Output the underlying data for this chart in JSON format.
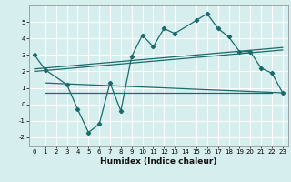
{
  "title": "",
  "xlabel": "Humidex (Indice chaleur)",
  "ylabel": "",
  "bg_color": "#d6eeee",
  "grid_color": "#c8e0e0",
  "line_color": "#1a6b6b",
  "ylim": [
    -2.5,
    6.0
  ],
  "xlim": [
    -0.5,
    23.5
  ],
  "main_line_x": [
    0,
    1,
    3,
    4,
    5,
    6,
    7,
    8,
    9,
    10,
    11,
    12,
    13,
    15,
    16,
    17,
    18,
    19,
    20,
    21,
    22,
    23
  ],
  "main_line_y": [
    3.0,
    2.1,
    1.2,
    -0.3,
    -1.7,
    -1.2,
    1.3,
    -0.4,
    2.9,
    4.2,
    3.5,
    4.6,
    4.3,
    5.1,
    5.5,
    4.6,
    4.1,
    3.2,
    3.2,
    2.2,
    1.9,
    0.7
  ],
  "reg_line1": {
    "x": [
      0,
      23
    ],
    "y": [
      2.15,
      3.45
    ]
  },
  "reg_line2": {
    "x": [
      0,
      23
    ],
    "y": [
      2.0,
      3.3
    ]
  },
  "reg_lower_diag": {
    "x": [
      1,
      23
    ],
    "y": [
      1.3,
      0.7
    ]
  },
  "horiz_line": {
    "x": [
      1,
      22
    ],
    "y": [
      0.7,
      0.7
    ]
  }
}
